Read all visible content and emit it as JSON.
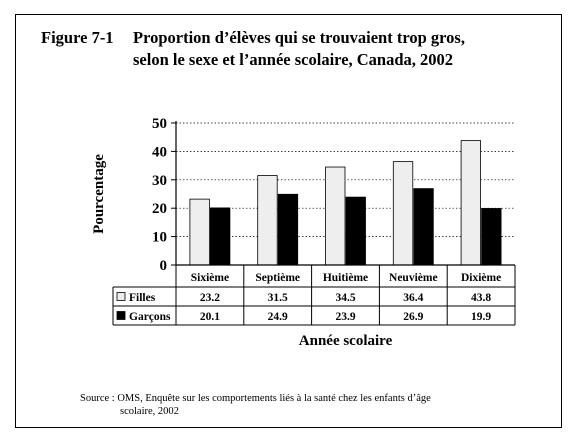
{
  "figure": {
    "number": "Figure 7-1",
    "title_line1": "Proportion d’élèves qui se trouvaient trop gros,",
    "title_line2": "selon le sexe et l’année scolaire, Canada, 2002"
  },
  "source": {
    "line1": "Source : OMS, Enquête sur les comportements liés à la santé chez les enfants d’âge",
    "line2": "scolaire, 2002"
  },
  "chart_data": {
    "type": "bar",
    "title": "Proportion d’élèves qui se trouvaient trop gros, selon le sexe et l’année scolaire, Canada, 2002",
    "xlabel": "Année scolaire",
    "ylabel": "Pourcentage",
    "ylim": [
      0,
      50
    ],
    "yticks": [
      0,
      10,
      20,
      30,
      40,
      50
    ],
    "grid": true,
    "categories": [
      "Sixième",
      "Septième",
      "Huitième",
      "Neuvième",
      "Dixième"
    ],
    "series": [
      {
        "name": "Filles",
        "values": [
          23.2,
          31.5,
          34.5,
          36.4,
          43.8
        ],
        "labels": [
          "23.2",
          "31.5",
          "34.5",
          "36.4",
          "43.8"
        ],
        "color": "#eeeeee"
      },
      {
        "name": "Garçons",
        "values": [
          20.1,
          24.9,
          23.9,
          26.9,
          19.9
        ],
        "labels": [
          "20.1",
          "24.9",
          "23.9",
          "26.9",
          "19.9"
        ],
        "color": "#000000"
      }
    ],
    "data_table": true
  }
}
